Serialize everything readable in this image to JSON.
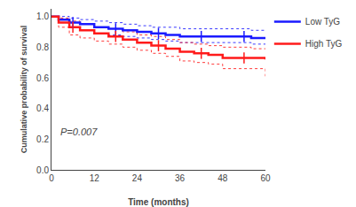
{
  "chart_data": {
    "type": "step",
    "xlabel": "Time (months)",
    "ylabel": "Cumulative probability of survival",
    "xlim": [
      0,
      60
    ],
    "ylim": [
      0.0,
      1.05
    ],
    "xticks": [
      0,
      12,
      24,
      36,
      48,
      60
    ],
    "yticks": [
      {
        "value": 0.0,
        "label": "0.0"
      },
      0.2,
      0.4,
      0.6,
      0.8,
      {
        "value": 1.0,
        "label": "1.0"
      }
    ],
    "grid": false,
    "legend": "right",
    "annotations": [
      {
        "text": "P=0.007",
        "x": 2,
        "y": 0.2
      }
    ],
    "series": [
      {
        "name": "Low TyG",
        "color": "#1a1aff",
        "x": [
          0,
          2,
          5,
          8,
          12,
          16,
          20,
          24,
          28,
          32,
          36,
          40,
          44,
          48,
          52,
          56,
          60
        ],
        "values": [
          1.0,
          0.98,
          0.96,
          0.95,
          0.93,
          0.92,
          0.91,
          0.9,
          0.89,
          0.88,
          0.87,
          0.87,
          0.87,
          0.87,
          0.87,
          0.86,
          0.86
        ],
        "upper": [
          1.0,
          1.0,
          0.99,
          0.98,
          0.97,
          0.96,
          0.95,
          0.94,
          0.93,
          0.93,
          0.92,
          0.92,
          0.92,
          0.92,
          0.92,
          0.91,
          0.91
        ],
        "lower": [
          1.0,
          0.96,
          0.93,
          0.91,
          0.89,
          0.88,
          0.87,
          0.86,
          0.85,
          0.84,
          0.83,
          0.83,
          0.83,
          0.83,
          0.83,
          0.82,
          0.82
        ],
        "censor_x": [
          6,
          18,
          30,
          42,
          54
        ],
        "censor_y": [
          0.96,
          0.92,
          0.89,
          0.87,
          0.87
        ]
      },
      {
        "name": "High TyG",
        "color": "#ff1a1a",
        "x": [
          0,
          2,
          5,
          8,
          12,
          16,
          20,
          24,
          28,
          32,
          36,
          40,
          44,
          48,
          52,
          56,
          60
        ],
        "values": [
          1.0,
          0.96,
          0.93,
          0.91,
          0.89,
          0.87,
          0.85,
          0.83,
          0.81,
          0.79,
          0.77,
          0.76,
          0.75,
          0.73,
          0.73,
          0.73,
          0.72
        ],
        "upper": [
          1.0,
          0.99,
          0.97,
          0.95,
          0.93,
          0.92,
          0.9,
          0.88,
          0.87,
          0.85,
          0.83,
          0.82,
          0.81,
          0.8,
          0.8,
          0.79,
          0.79
        ],
        "lower": [
          1.0,
          0.93,
          0.88,
          0.86,
          0.84,
          0.82,
          0.8,
          0.78,
          0.76,
          0.74,
          0.71,
          0.7,
          0.69,
          0.66,
          0.66,
          0.66,
          0.61
        ],
        "censor_x": [
          6,
          18,
          30,
          42,
          54
        ],
        "censor_y": [
          0.93,
          0.87,
          0.81,
          0.76,
          0.73
        ]
      }
    ]
  }
}
